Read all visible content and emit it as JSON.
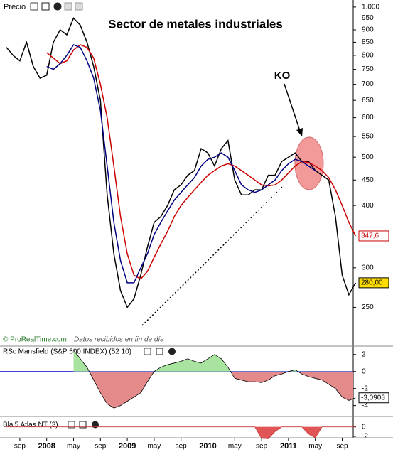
{
  "chart_data": [
    {
      "type": "line",
      "title": "Sector de metales industriales",
      "legend_label": "Precio",
      "source": "© ProRealTime.com",
      "note": "Datos recibidos en fin de día",
      "annotation": "KO",
      "log_scale": true,
      "ylim": [
        221,
        1033
      ],
      "yticks": [
        {
          "value": 1000,
          "label": "1.000"
        },
        950,
        900,
        850,
        800,
        750,
        700,
        650,
        600,
        550,
        500,
        450,
        400,
        300,
        250
      ],
      "series": [
        {
          "color": "#000000",
          "label_fill": "#ffdd00",
          "last_label": "280,00",
          "values": [
            830,
            800,
            780,
            850,
            760,
            720,
            730,
            850,
            900,
            880,
            950,
            920,
            850,
            760,
            650,
            420,
            320,
            270,
            250,
            260,
            290,
            330,
            370,
            380,
            400,
            430,
            440,
            460,
            470,
            520,
            510,
            480,
            520,
            540,
            450,
            420,
            420,
            430,
            430,
            460,
            460,
            490,
            500,
            510,
            490,
            490,
            470,
            460,
            450,
            380,
            290,
            265,
            280
          ]
        },
        {
          "color": "#cc0000",
          "label_fill": "#ffffff",
          "last_label": "347,6",
          "values": [
            null,
            null,
            null,
            null,
            null,
            null,
            810,
            790,
            770,
            780,
            820,
            840,
            830,
            790,
            700,
            600,
            480,
            380,
            320,
            290,
            285,
            295,
            315,
            335,
            355,
            380,
            400,
            415,
            430,
            445,
            460,
            470,
            480,
            485,
            480,
            470,
            460,
            450,
            440,
            438,
            440,
            450,
            465,
            480,
            490,
            488,
            480,
            470,
            455,
            430,
            400,
            370,
            347.6
          ]
        },
        {
          "color": "#000080",
          "values": [
            null,
            null,
            null,
            null,
            null,
            null,
            760,
            750,
            770,
            800,
            840,
            830,
            780,
            720,
            620,
            480,
            370,
            310,
            280,
            280,
            300,
            320,
            350,
            370,
            390,
            410,
            425,
            440,
            455,
            480,
            495,
            500,
            510,
            500,
            470,
            440,
            430,
            425,
            430,
            440,
            450,
            470,
            485,
            495,
            490,
            480,
            470,
            null,
            null,
            null,
            null,
            null,
            null
          ]
        }
      ]
    },
    {
      "type": "area",
      "title": "RSc Mansfield (S&P 500 INDEX) (52 10)",
      "ylim": [
        -5.2,
        2.9
      ],
      "yticks": [
        2,
        0,
        -2,
        -4
      ],
      "zero_color": "#0000cc",
      "series": [
        {
          "color": "#000000",
          "color_above": "#a8e4a0",
          "color_below": "#e58a8a",
          "label_fill": "#ffffff",
          "last_label": "-3,0903",
          "values": [
            null,
            null,
            null,
            null,
            null,
            null,
            null,
            null,
            null,
            null,
            2.5,
            1.5,
            0.5,
            -1,
            -2.5,
            -3.8,
            -4.3,
            -4,
            -3.5,
            -3,
            -2.5,
            -1.2,
            0,
            0.5,
            0.8,
            1,
            1.2,
            1.5,
            1.2,
            1,
            1.5,
            2,
            1.5,
            0.5,
            -0.8,
            -1,
            -1.2,
            -1.2,
            -1.3,
            -1,
            -0.5,
            -0.3,
            0,
            0.2,
            -0.3,
            -0.6,
            -0.8,
            -1,
            -1.5,
            -2,
            -3,
            -3.4,
            -3.0903
          ]
        }
      ]
    },
    {
      "type": "area",
      "title": "Blai5 Atlas NT (3)",
      "ylim": [
        -2.6,
        1.9
      ],
      "yticks": [
        0,
        -2
      ],
      "categories": [
        null,
        null,
        "sep",
        null,
        null,
        null,
        "2008",
        null,
        null,
        null,
        "may",
        null,
        null,
        null,
        "sep",
        null,
        null,
        null,
        "2009",
        null,
        null,
        null,
        "may",
        null,
        null,
        null,
        "sep",
        null,
        null,
        null,
        "2010",
        null,
        null,
        null,
        "may",
        null,
        null,
        null,
        "sep",
        null,
        null,
        null,
        "2011",
        null,
        null,
        null,
        "may",
        null,
        null,
        null,
        "sep",
        null,
        null
      ],
      "series": [
        {
          "color": "#cc3333",
          "color_above": "#a8e4a0",
          "color_below": "#e05555",
          "values": [
            0,
            0,
            0,
            0,
            0,
            0,
            0,
            0,
            0,
            0,
            0,
            0,
            0,
            0,
            0,
            0,
            0,
            0,
            0,
            0,
            0,
            0,
            0,
            0,
            0,
            0,
            0,
            0,
            0,
            0,
            0,
            0,
            0,
            0,
            0,
            0,
            0,
            0,
            -2.4,
            -2.5,
            -1,
            0,
            0,
            0,
            0,
            -1.5,
            -2.3,
            0,
            0,
            0,
            0,
            0,
            0
          ]
        }
      ]
    }
  ]
}
